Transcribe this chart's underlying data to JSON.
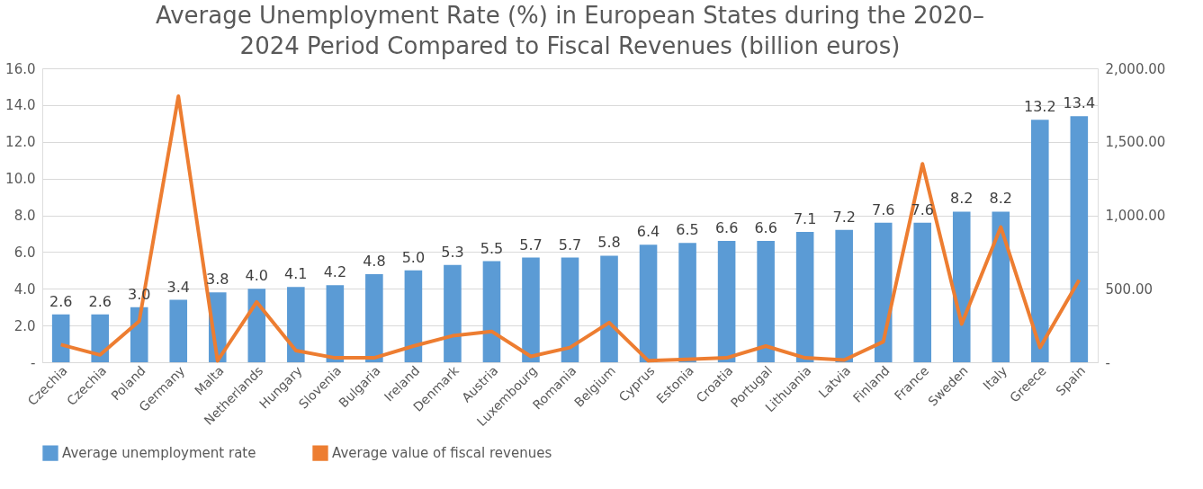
{
  "chart_data": {
    "type": "bar",
    "title": "Average Unemployment Rate (%) in European States during the 2020–2024 Period Compared to Fiscal Revenues (billion euros)",
    "categories": [
      "Czechia",
      "Czechia",
      "Poland",
      "Germany",
      "Malta",
      "Netherlands",
      "Hungary",
      "Slovenia",
      "Bulgaria",
      "Ireland",
      "Denmark",
      "Austria",
      "Luxembourg",
      "Romania",
      "Belgium",
      "Cyprus",
      "Estonia",
      "Croatia",
      "Portugal",
      "Lithuania",
      "Latvia",
      "Finland",
      "France",
      "Sweden",
      "Italy",
      "Greece",
      "Spain"
    ],
    "series": [
      {
        "name": "Average unemployment rate",
        "color": "#5b9bd5",
        "values": [
          2.6,
          2.6,
          3.0,
          3.4,
          3.8,
          4.0,
          4.1,
          4.2,
          4.8,
          5.0,
          5.3,
          5.5,
          5.7,
          5.7,
          5.8,
          6.4,
          6.5,
          6.6,
          6.6,
          7.1,
          7.2,
          7.6,
          7.6,
          8.2,
          8.2,
          13.2,
          13.4
        ],
        "value_labels": [
          "2.6",
          "2.6",
          "3.0",
          "3.4",
          "3.8",
          "4.0",
          "4.1",
          "4.2",
          "4.8",
          "5.0",
          "5.3",
          "5.5",
          "5.7",
          "5.7",
          "5.8",
          "6.4",
          "6.5",
          "6.6",
          "6.6",
          "7.1",
          "7.2",
          "7.6",
          "7.6",
          "8.2",
          "8.2",
          "13.2",
          "13.4"
        ]
      },
      {
        "name": "Average value of fiscal revenues",
        "type": "line",
        "axis": "y2",
        "color": "#ed7d31",
        "values": [
          120,
          50,
          280,
          1810,
          10,
          410,
          80,
          30,
          30,
          110,
          180,
          210,
          40,
          100,
          270,
          10,
          20,
          30,
          110,
          30,
          15,
          140,
          1350,
          260,
          920,
          100,
          560
        ]
      }
    ],
    "ylim": [
      0,
      16
    ],
    "yticks": [
      {
        "value": 0,
        "label": "-"
      },
      {
        "value": 2,
        "label": "2.0"
      },
      {
        "value": 4,
        "label": "4.0"
      },
      {
        "value": 6,
        "label": "6.0"
      },
      {
        "value": 8,
        "label": "8.0"
      },
      {
        "value": 10,
        "label": "10.0"
      },
      {
        "value": 12,
        "label": "12.0"
      },
      {
        "value": 14,
        "label": "14.0"
      },
      {
        "value": 16,
        "label": "16.0"
      }
    ],
    "y2lim": [
      0,
      2000
    ],
    "y2ticks": [
      {
        "value": 0,
        "label": "-"
      },
      {
        "value": 500,
        "label": "500.00"
      },
      {
        "value": 1000,
        "label": "1,000.00"
      },
      {
        "value": 1500,
        "label": "1,500.00"
      },
      {
        "value": 2000,
        "label": "2,000.00"
      }
    ],
    "grid": "y",
    "legend": "bottom",
    "line_style": "solid",
    "marker": "none"
  }
}
